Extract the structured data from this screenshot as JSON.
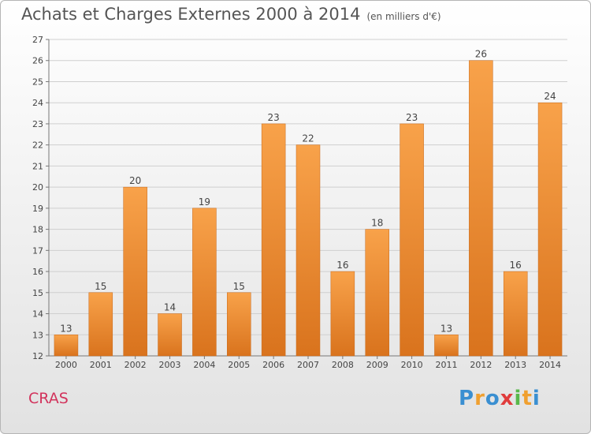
{
  "header": {
    "title": "Achats et Charges Externes 2000 à 2014",
    "subtitle": "(en milliers d'€)"
  },
  "footer": {
    "commune": "CRAS",
    "logo_letters": [
      {
        "ch": "P",
        "color": "#3a8fd1"
      },
      {
        "ch": "r",
        "color": "#f0a030"
      },
      {
        "ch": "o",
        "color": "#3a8fd1"
      },
      {
        "ch": "x",
        "color": "#e03c3c"
      },
      {
        "ch": "i",
        "color": "#59b84a"
      },
      {
        "ch": "t",
        "color": "#f0a030"
      },
      {
        "ch": "i",
        "color": "#3a8fd1"
      }
    ]
  },
  "colors": {
    "bar_top": "#f8a24a",
    "bar_bottom": "#d9731d",
    "grid": "#cfcfcf"
  },
  "chart_data": {
    "type": "bar",
    "title": "Achats et Charges Externes 2000 à 2014",
    "subtitle": "(en milliers d'€)",
    "categories": [
      "2000",
      "2001",
      "2002",
      "2003",
      "2004",
      "2005",
      "2006",
      "2007",
      "2008",
      "2009",
      "2010",
      "2011",
      "2012",
      "2013",
      "2014"
    ],
    "values": [
      13,
      15,
      20,
      14,
      19,
      15,
      23,
      22,
      16,
      18,
      23,
      13,
      26,
      16,
      24
    ],
    "ylim": [
      12,
      27
    ],
    "yticks": [
      12,
      13,
      14,
      15,
      16,
      17,
      18,
      19,
      20,
      21,
      22,
      23,
      24,
      25,
      26,
      27
    ],
    "grid": true,
    "xlabel": "",
    "ylabel": ""
  }
}
